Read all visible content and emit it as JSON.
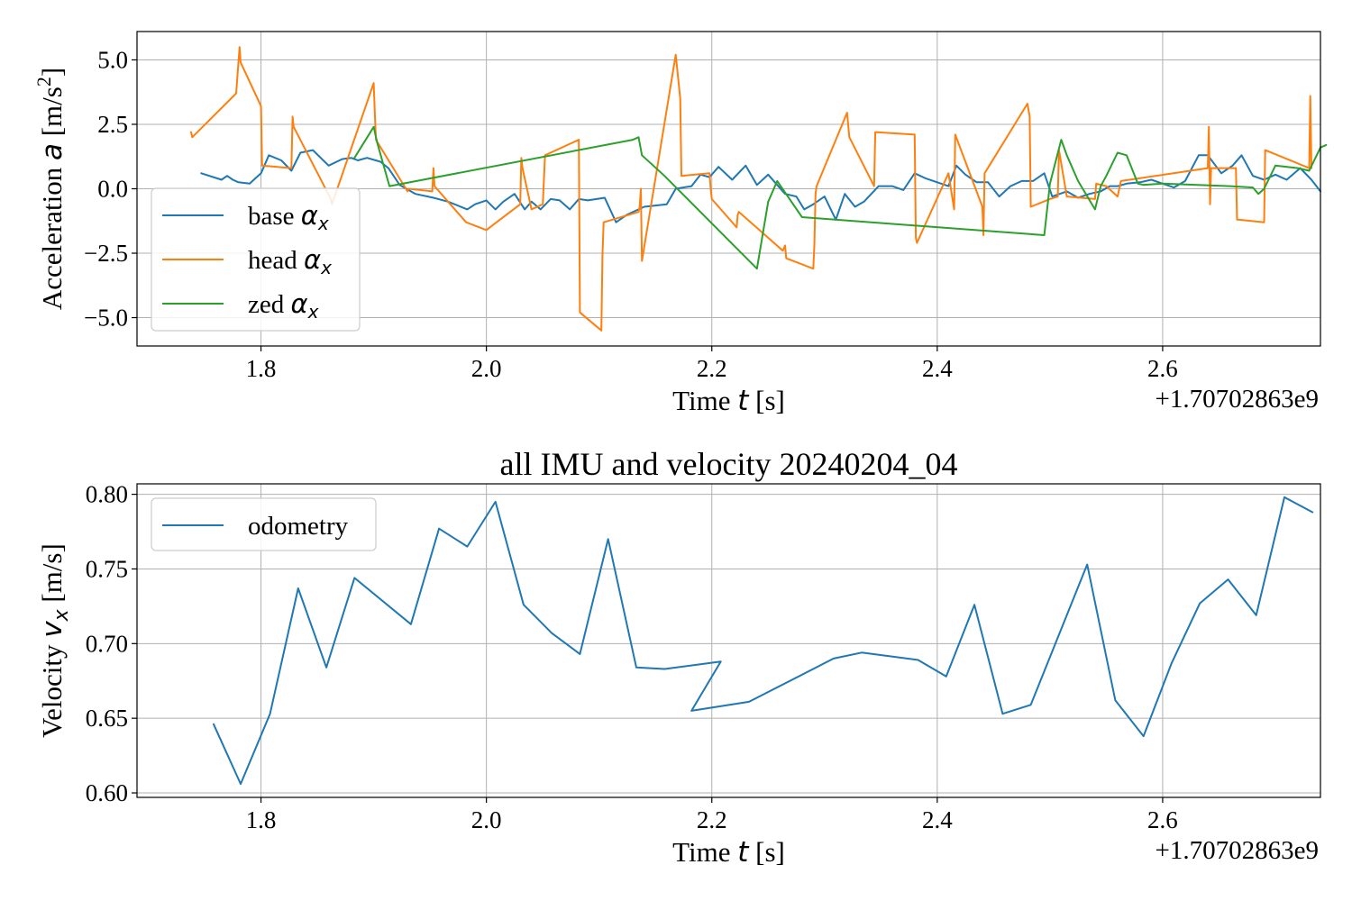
{
  "chart_data": [
    {
      "type": "line",
      "title": "",
      "xlabel": "Time t [s]",
      "ylabel": "Acceleration a [m/s²]",
      "x_offset_label": "+1.70702863e9",
      "xlim": [
        1.69,
        2.74
      ],
      "ylim": [
        -6.1,
        6.1
      ],
      "xticks": [
        1.8,
        2.0,
        2.2,
        2.4,
        2.6
      ],
      "yticks": [
        -5.0,
        -2.5,
        0.0,
        2.5,
        5.0
      ],
      "xtick_labels": [
        "1.8",
        "2.0",
        "2.2",
        "2.4",
        "2.6"
      ],
      "ytick_labels": [
        "−5.0",
        "−2.5",
        "0.0",
        "2.5",
        "5.0"
      ],
      "grid": true,
      "legend_position": "lower-left",
      "series": [
        {
          "name": "base αx",
          "color": "#1f77b4",
          "x": [
            1.747,
            1.765,
            1.77,
            1.775,
            1.78,
            1.79,
            1.8,
            1.807,
            1.818,
            1.827,
            1.835,
            1.846,
            1.86,
            1.872,
            1.88,
            1.886,
            1.894,
            1.906,
            1.913,
            1.923,
            1.937,
            1.953,
            1.966,
            1.983,
            1.99,
            2.0,
            2.008,
            2.015,
            2.025,
            2.034,
            2.04,
            2.048,
            2.057,
            2.065,
            2.074,
            2.082,
            2.09,
            2.105,
            2.115,
            2.125,
            2.14,
            2.15,
            2.16,
            2.168,
            2.182,
            2.19,
            2.198,
            2.206,
            2.218,
            2.23,
            2.24,
            2.25,
            2.265,
            2.275,
            2.282,
            2.29,
            2.3,
            2.31,
            2.318,
            2.327,
            2.335,
            2.348,
            2.36,
            2.37,
            2.38,
            2.39,
            2.4,
            2.41,
            2.417,
            2.425,
            2.435,
            2.445,
            2.455,
            2.465,
            2.475,
            2.485,
            2.495,
            2.502,
            2.515,
            2.525,
            2.535,
            2.545,
            2.553,
            2.56,
            2.568,
            2.58,
            2.59,
            2.6,
            2.61,
            2.62,
            2.632,
            2.64,
            2.652,
            2.662,
            2.67,
            2.68,
            2.69,
            2.7,
            2.71,
            2.722,
            2.732,
            2.74
          ],
          "y": [
            0.6,
            0.35,
            0.5,
            0.35,
            0.25,
            0.2,
            0.6,
            1.3,
            1.1,
            0.7,
            1.4,
            1.5,
            0.9,
            1.15,
            1.2,
            1.1,
            1.2,
            1.05,
            0.8,
            0.15,
            -0.2,
            -0.35,
            -0.5,
            -0.8,
            -0.6,
            -0.45,
            -0.8,
            -0.5,
            -0.2,
            -0.8,
            -0.5,
            -0.8,
            -0.4,
            -0.45,
            -0.8,
            -0.4,
            -0.45,
            -0.35,
            -1.3,
            -1.0,
            -0.7,
            -0.65,
            -0.6,
            0.0,
            0.1,
            0.55,
            0.45,
            0.85,
            0.35,
            0.9,
            0.15,
            0.55,
            -0.2,
            -0.3,
            -0.8,
            -0.6,
            -0.3,
            -1.2,
            -0.2,
            -0.7,
            -0.5,
            0.1,
            0.1,
            -0.05,
            0.6,
            0.4,
            0.25,
            0.1,
            0.9,
            0.55,
            0.25,
            0.25,
            -0.3,
            0.1,
            0.3,
            0.3,
            0.6,
            -0.3,
            -0.1,
            -0.35,
            -0.2,
            -0.1,
            0.1,
            0.1,
            0.2,
            0.25,
            0.35,
            0.2,
            0.05,
            0.3,
            1.3,
            1.3,
            0.6,
            0.9,
            1.3,
            0.5,
            0.35,
            0.55,
            0.35,
            0.8,
            0.35,
            -0.1
          ]
        },
        {
          "name": "head αx",
          "color": "#ff7f0e",
          "x": [
            1.738,
            1.739,
            1.778,
            1.781,
            1.782,
            1.799,
            1.8,
            1.801,
            1.827,
            1.828,
            1.829,
            1.862,
            1.863,
            1.9,
            1.901,
            1.902,
            1.93,
            1.931,
            1.952,
            1.953,
            1.954,
            1.982,
            2.0,
            2.03,
            2.031,
            2.032,
            2.04,
            2.05,
            2.052,
            2.082,
            2.083,
            2.102,
            2.103,
            2.104,
            2.135,
            2.136,
            2.137,
            2.138,
            2.168,
            2.172,
            2.173,
            2.198,
            2.199,
            2.2,
            2.222,
            2.223,
            2.224,
            2.263,
            2.265,
            2.266,
            2.29,
            2.291,
            2.292,
            2.293,
            2.32,
            2.322,
            2.344,
            2.345,
            2.38,
            2.381,
            2.382,
            2.41,
            2.415,
            2.416,
            2.44,
            2.441,
            2.442,
            2.48,
            2.482,
            2.483,
            2.5,
            2.507,
            2.508,
            2.515,
            2.54,
            2.541,
            2.55,
            2.56,
            2.563,
            2.64,
            2.641,
            2.642,
            2.643,
            2.665,
            2.666,
            2.667,
            2.69,
            2.691,
            2.73,
            2.731,
            2.732
          ],
          "y": [
            2.2,
            2.0,
            3.7,
            5.5,
            4.9,
            3.3,
            3.2,
            0.9,
            0.8,
            2.8,
            2.4,
            -0.4,
            -0.6,
            4.1,
            2.9,
            1.9,
            -0.1,
            0.0,
            -0.1,
            0.8,
            0.1,
            -1.3,
            -1.6,
            -0.6,
            1.2,
            0.8,
            -0.8,
            -0.6,
            1.3,
            1.9,
            -4.8,
            -5.5,
            -2.6,
            -1.3,
            -0.9,
            -0.7,
            0.0,
            -2.8,
            5.2,
            3.5,
            0.5,
            0.6,
            0.0,
            -0.4,
            -1.5,
            -1.0,
            -0.9,
            -2.4,
            -2.2,
            -2.7,
            -3.1,
            -2.2,
            -0.2,
            0.1,
            2.95,
            2.0,
            0.1,
            2.2,
            2.1,
            -1.9,
            -2.1,
            0.6,
            -0.8,
            2.1,
            -0.7,
            -1.8,
            0.6,
            3.3,
            2.8,
            -0.7,
            -0.4,
            -0.3,
            1.5,
            -0.3,
            -0.4,
            0.2,
            0.1,
            -0.3,
            0.3,
            0.8,
            2.4,
            -0.6,
            0.8,
            0.8,
            -1.2,
            -1.2,
            -1.3,
            1.5,
            0.8,
            3.6,
            0.8
          ]
        },
        {
          "name": "zed αx",
          "color": "#2ca02c",
          "x": [
            1.883,
            1.9,
            1.903,
            1.914,
            2.13,
            2.135,
            2.138,
            2.158,
            2.24,
            2.25,
            2.258,
            2.28,
            2.495,
            2.5,
            2.51,
            2.515,
            2.525,
            2.54,
            2.545,
            2.55,
            2.56,
            2.568,
            2.578,
            2.583,
            2.6,
            2.66,
            2.68,
            2.685,
            2.69,
            2.7,
            2.72,
            2.73,
            2.74,
            2.745
          ],
          "y": [
            1.2,
            2.4,
            1.8,
            0.1,
            1.9,
            2.0,
            1.3,
            0.5,
            -3.1,
            -0.5,
            0.3,
            -1.1,
            -1.8,
            0.2,
            1.9,
            1.3,
            0.3,
            -0.8,
            0.1,
            0.5,
            1.4,
            1.3,
            0.2,
            0.15,
            0.2,
            0.1,
            0.05,
            -0.2,
            0.0,
            0.9,
            0.8,
            0.7,
            1.6,
            1.7
          ]
        }
      ]
    },
    {
      "type": "line",
      "title": "all IMU and velocity 20240204_04",
      "xlabel": "Time t [s]",
      "ylabel": "Velocity vx [m/s]",
      "x_offset_label": "+1.70702863e9",
      "xlim": [
        1.69,
        2.74
      ],
      "ylim": [
        0.597,
        0.807
      ],
      "xticks": [
        1.8,
        2.0,
        2.2,
        2.4,
        2.6
      ],
      "yticks": [
        0.6,
        0.65,
        0.7,
        0.75,
        0.8
      ],
      "xtick_labels": [
        "1.8",
        "2.0",
        "2.2",
        "2.4",
        "2.6"
      ],
      "ytick_labels": [
        "0.60",
        "0.65",
        "0.70",
        "0.75",
        "0.80"
      ],
      "grid": true,
      "legend_position": "upper-left",
      "series": [
        {
          "name": "odometry",
          "color": "#1f77b4",
          "x": [
            1.758,
            1.782,
            1.808,
            1.833,
            1.858,
            1.883,
            1.933,
            1.958,
            1.983,
            2.008,
            2.033,
            2.058,
            2.083,
            2.108,
            2.133,
            2.158,
            2.208,
            2.182,
            2.233,
            2.308,
            2.333,
            2.383,
            2.408,
            2.433,
            2.458,
            2.483,
            2.533,
            2.558,
            2.583,
            2.608,
            2.633,
            2.658,
            2.683,
            2.708,
            2.733
          ],
          "y": [
            0.646,
            0.606,
            0.653,
            0.737,
            0.684,
            0.744,
            0.713,
            0.777,
            0.765,
            0.795,
            0.726,
            0.707,
            0.693,
            0.77,
            0.684,
            0.683,
            0.688,
            0.655,
            0.661,
            0.69,
            0.694,
            0.689,
            0.678,
            0.726,
            0.653,
            0.659,
            0.753,
            0.662,
            0.638,
            0.687,
            0.727,
            0.743,
            0.719,
            0.798,
            0.788
          ]
        }
      ]
    }
  ]
}
